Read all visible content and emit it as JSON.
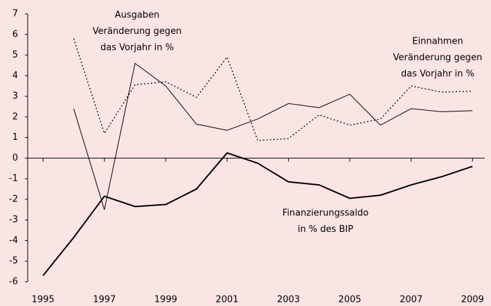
{
  "chart_data": {
    "type": "line",
    "x": [
      1995,
      1996,
      1997,
      1998,
      1999,
      2000,
      2001,
      2002,
      2003,
      2004,
      2005,
      2006,
      2007,
      2008,
      2009
    ],
    "series": [
      {
        "color": "#000000",
        "style": "dotted",
        "width": 1.3,
        "values": [
          null,
          5.8,
          1.2,
          3.56,
          3.7,
          2.95,
          4.9,
          0.85,
          0.95,
          2.1,
          1.6,
          1.9,
          3.5,
          3.2,
          3.25
        ]
      },
      {
        "color": "#000000",
        "style": "solid",
        "width": 1,
        "values": [
          null,
          2.4,
          -2.5,
          4.6,
          3.5,
          1.65,
          1.35,
          1.9,
          2.65,
          2.45,
          3.1,
          1.6,
          2.4,
          2.25,
          2.3
        ]
      },
      {
        "color": "#000000",
        "style": "solid",
        "width": 2,
        "values": [
          -5.7,
          -3.85,
          -1.85,
          -2.35,
          -2.25,
          -1.5,
          0.25,
          -0.25,
          -1.15,
          -1.3,
          -1.95,
          -1.8,
          -1.3,
          -0.9,
          -0.4
        ]
      }
    ],
    "annotations": [
      [
        "Ausgaben",
        "Veränderung gegen",
        "das Vorjahr in %"
      ],
      [
        "Einnahmen",
        "Veränderung gegen",
        "das Vorjahr in %"
      ],
      [
        "Finanzierungssaldo",
        "in % des BIP"
      ]
    ],
    "xlim": [
      1994.5,
      2009.4
    ],
    "xticks": [
      1995,
      1997,
      1999,
      2001,
      2003,
      2005,
      2007,
      2009
    ],
    "ylim": [
      -6,
      7
    ],
    "yticks": [
      -6,
      -5,
      -4,
      -3,
      -2,
      -1,
      0,
      1,
      2,
      3,
      4,
      5,
      6,
      7
    ],
    "background": "#fbe4e4"
  }
}
